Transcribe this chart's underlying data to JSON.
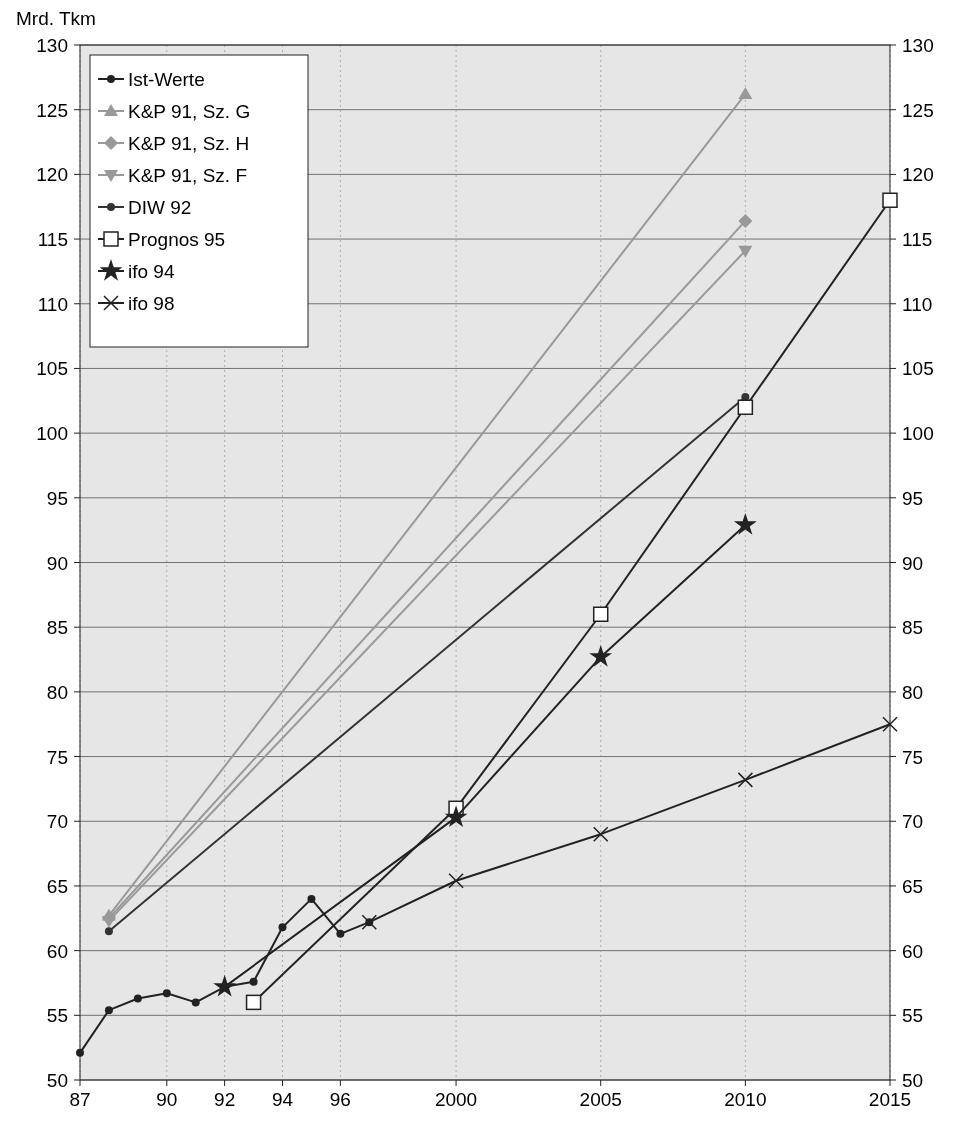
{
  "chart_data": {
    "type": "line",
    "ylabel": "Mrd. Tkm",
    "xlim": [
      1987,
      2015
    ],
    "xticks": [
      {
        "value": 1987,
        "label": "87"
      },
      {
        "value": 1990,
        "label": "90"
      },
      {
        "value": 1992,
        "label": "92"
      },
      {
        "value": 1994,
        "label": "94"
      },
      {
        "value": 1996,
        "label": "96"
      },
      2000,
      2005,
      2010,
      2015
    ],
    "ylim": [
      50,
      130
    ],
    "yticks": [
      50,
      55,
      60,
      65,
      70,
      75,
      80,
      85,
      90,
      95,
      100,
      105,
      110,
      115,
      120,
      125,
      130
    ],
    "y2lim": [
      50,
      130
    ],
    "y2ticks": [
      50,
      55,
      60,
      65,
      70,
      75,
      80,
      85,
      90,
      95,
      100,
      105,
      110,
      115,
      120,
      125,
      130
    ],
    "grid": true,
    "legend": "top left",
    "series": [
      {
        "name": "Ist-Werte",
        "color": "#222222",
        "marker": "circle",
        "x": [
          1987,
          1988,
          1989,
          1990,
          1991,
          1992,
          1993,
          1994,
          1995,
          1996,
          1997
        ],
        "values": [
          52.1,
          55.4,
          56.3,
          56.7,
          56.0,
          57.2,
          57.6,
          61.8,
          64.0,
          61.3,
          62.2
        ]
      },
      {
        "name": "K&P 91, Sz. G",
        "color": "#999999",
        "marker": "triangle",
        "x": [
          1988,
          2010
        ],
        "values": [
          62.7,
          126.2
        ]
      },
      {
        "name": "K&P 91, Sz. H",
        "color": "#999999",
        "marker": "diamond",
        "x": [
          1988,
          2010
        ],
        "values": [
          62.5,
          116.4
        ]
      },
      {
        "name": "K&P 91, Sz. F",
        "color": "#999999",
        "marker": "triangle-down",
        "x": [
          1988,
          2010
        ],
        "values": [
          62.3,
          114.1
        ]
      },
      {
        "name": "DIW 92",
        "color": "#333333",
        "marker": "circle",
        "x": [
          1988,
          2010
        ],
        "values": [
          61.5,
          102.8
        ]
      },
      {
        "name": "Prognos 95",
        "color": "#222222",
        "marker": "square",
        "x": [
          1993,
          2000,
          2005,
          2010,
          2015
        ],
        "values": [
          56.0,
          71.0,
          86.0,
          102.0,
          118.0
        ]
      },
      {
        "name": "ifo 94",
        "color": "#222222",
        "marker": "star",
        "x": [
          1992,
          2000,
          2005,
          2010
        ],
        "values": [
          57.2,
          70.3,
          82.7,
          92.9
        ]
      },
      {
        "name": "ifo 98",
        "color": "#222222",
        "marker": "cross",
        "x": [
          1997,
          2000,
          2005,
          2010,
          2015
        ],
        "values": [
          62.2,
          65.4,
          69.0,
          73.2,
          77.5
        ]
      }
    ]
  }
}
